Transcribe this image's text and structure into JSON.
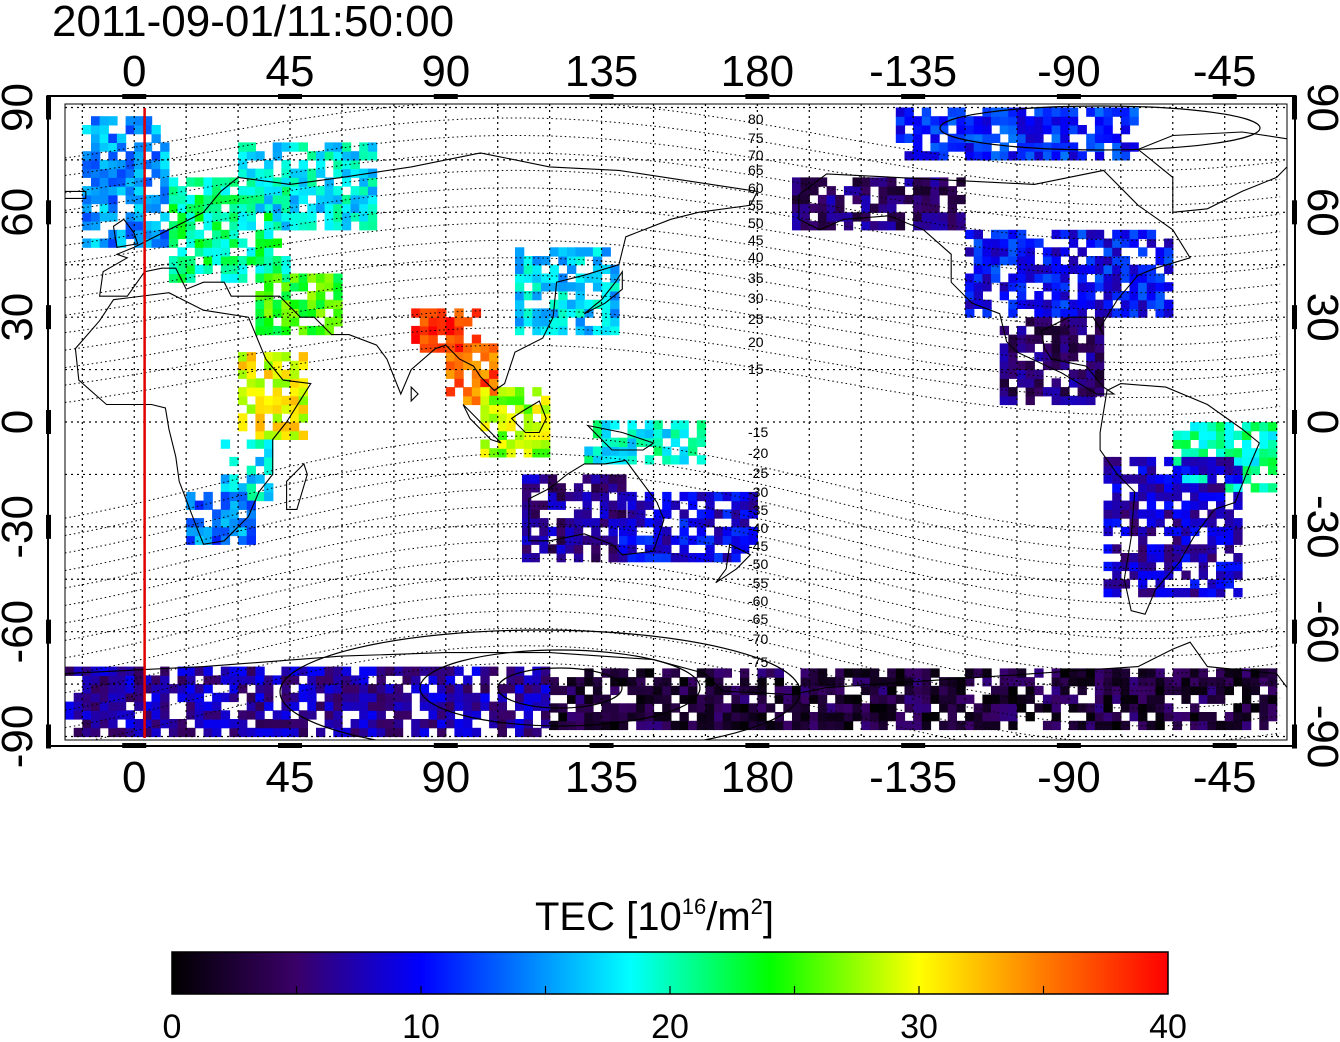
{
  "title": "2011-09-01/11:50:00",
  "map": {
    "lon_ticks": [
      "0",
      "45",
      "90",
      "135",
      "180",
      "-135",
      "-90",
      "-45"
    ],
    "lat_ticks": [
      "90",
      "60",
      "30",
      "0",
      "-30",
      "-60",
      "-90"
    ],
    "lon_range": [
      -20,
      333
    ],
    "lat_range": [
      -91,
      91
    ],
    "meridian_marker": {
      "lon": 3,
      "color": "#e00000"
    },
    "dip_latitude_labels": [
      "80",
      "75",
      "70",
      "65",
      "60",
      "55",
      "50",
      "45",
      "40",
      "35",
      "30",
      "25",
      "20",
      "15",
      "-15",
      "-20",
      "-25",
      "-30",
      "-35",
      "-40",
      "-45",
      "-50",
      "-55",
      "-60",
      "-65",
      "-70",
      "-75"
    ]
  },
  "colorbar": {
    "label_main": "TEC  [10",
    "label_exp1": "16",
    "label_mid": "/m",
    "label_exp2": "2",
    "label_end": "]",
    "ticks": [
      "0",
      "10",
      "20",
      "30",
      "40"
    ],
    "range": [
      0,
      40
    ],
    "stops": [
      "#000000",
      "#3a0068",
      "#0000ff",
      "#00ffff",
      "#00ff00",
      "#ffff00",
      "#ff0000"
    ]
  },
  "chart_data": {
    "type": "heatmap",
    "title": "2011-09-01/11:50:00",
    "value_label": "TEC [10^16/m^2]",
    "vmin": 0,
    "vmax": 40,
    "regions": [
      {
        "lon": [
          -15,
          10
        ],
        "lat": [
          50,
          87
        ],
        "tec": 15
      },
      {
        "lon": [
          10,
          45
        ],
        "lat": [
          40,
          70
        ],
        "tec": 21
      },
      {
        "lon": [
          30,
          70
        ],
        "lat": [
          55,
          80
        ],
        "tec": 18
      },
      {
        "lon": [
          35,
          60
        ],
        "lat": [
          25,
          42
        ],
        "tec": 25
      },
      {
        "lon": [
          30,
          48
        ],
        "lat": [
          -5,
          20
        ],
        "tec": 30
      },
      {
        "lon": [
          25,
          40
        ],
        "lat": [
          -25,
          -5
        ],
        "tec": 18
      },
      {
        "lon": [
          15,
          35
        ],
        "lat": [
          -35,
          -20
        ],
        "tec": 14
      },
      {
        "lon": [
          80,
          100
        ],
        "lat": [
          20,
          32
        ],
        "tec": 38
      },
      {
        "lon": [
          90,
          105
        ],
        "lat": [
          5,
          22
        ],
        "tec": 36
      },
      {
        "lon": [
          100,
          120
        ],
        "lat": [
          -10,
          10
        ],
        "tec": 28
      },
      {
        "lon": [
          110,
          140
        ],
        "lat": [
          25,
          50
        ],
        "tec": 17
      },
      {
        "lon": [
          130,
          165
        ],
        "lat": [
          -12,
          0
        ],
        "tec": 19
      },
      {
        "lon": [
          112,
          140
        ],
        "lat": [
          -40,
          -15
        ],
        "tec": 6
      },
      {
        "lon": [
          140,
          180
        ],
        "lat": [
          -40,
          -20
        ],
        "tec": 9
      },
      {
        "lon": [
          190,
          240
        ],
        "lat": [
          55,
          70
        ],
        "tec": 5
      },
      {
        "lon": [
          220,
          290
        ],
        "lat": [
          75,
          90
        ],
        "tec": 11
      },
      {
        "lon": [
          240,
          300
        ],
        "lat": [
          30,
          55
        ],
        "tec": 10
      },
      {
        "lon": [
          250,
          280
        ],
        "lat": [
          5,
          30
        ],
        "tec": 5
      },
      {
        "lon": [
          300,
          330
        ],
        "lat": [
          -20,
          0
        ],
        "tec": 20
      },
      {
        "lon": [
          280,
          320
        ],
        "lat": [
          -50,
          -10
        ],
        "tec": 8
      },
      {
        "lon": [
          120,
          330
        ],
        "lat": [
          -88,
          -72
        ],
        "tec": 3
      },
      {
        "lon": [
          -20,
          120
        ],
        "lat": [
          -90,
          -70
        ],
        "tec": 7
      }
    ]
  }
}
